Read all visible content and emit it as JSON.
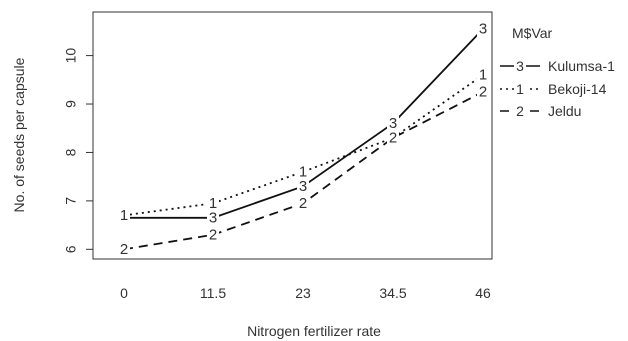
{
  "chart_data": {
    "type": "line",
    "xlabel": "Nitrogen fertilizer rate",
    "ylabel": "No. of seeds per capsule",
    "categories": [
      "0",
      "11.5",
      "23",
      "34.5",
      "46"
    ],
    "yticks": [
      6,
      7,
      8,
      9,
      10
    ],
    "ylim": [
      5.8,
      10.9
    ],
    "legend_title": "M$Var",
    "legend_position": "top-right",
    "series": [
      {
        "name": "Kulumsa-1",
        "marker": "3",
        "dash": "solid",
        "values": [
          6.65,
          6.65,
          7.3,
          8.6,
          10.55
        ]
      },
      {
        "name": "Bekoji-14",
        "marker": "1",
        "dash": "dotted",
        "values": [
          6.7,
          6.95,
          7.6,
          8.3,
          9.6
        ]
      },
      {
        "name": "Jeldu",
        "marker": "2",
        "dash": "dashed",
        "values": [
          6.0,
          6.3,
          6.95,
          8.3,
          9.25
        ]
      }
    ]
  }
}
